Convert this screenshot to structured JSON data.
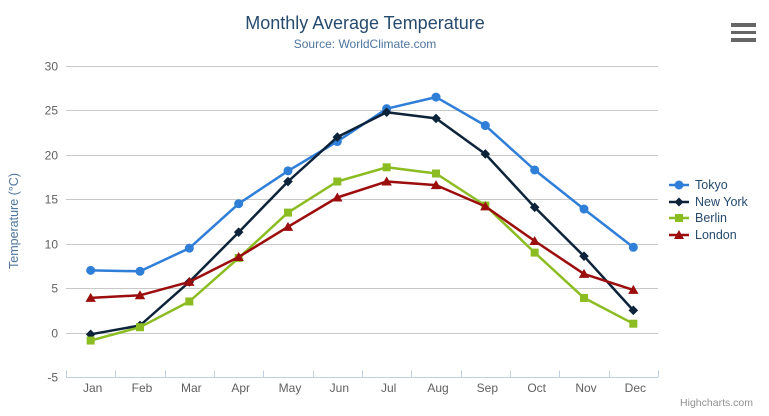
{
  "chart": {
    "credit_label": "Highcharts.com",
    "colors": {
      "title": "#274b6d",
      "subtitle": "#4d759e",
      "axis_title": "#4d759e",
      "axis_labels": "#606060",
      "grid_line": "#c8c8c8",
      "axis_line": "#c0d0e0",
      "legend_text": "#274b6d",
      "credit": "#909090",
      "menu_icon": "#666666"
    }
  },
  "chart_data": {
    "type": "line",
    "title": "Monthly Average Temperature",
    "subtitle": "Source: WorldClimate.com",
    "categories": [
      "Jan",
      "Feb",
      "Mar",
      "Apr",
      "May",
      "Jun",
      "Jul",
      "Aug",
      "Sep",
      "Oct",
      "Nov",
      "Dec"
    ],
    "xlabel": "",
    "ylabel": "Temperature (°C)",
    "ylim": [
      -5,
      30
    ],
    "yticks": [
      -5,
      0,
      5,
      10,
      15,
      20,
      25,
      30
    ],
    "grid": true,
    "legend_position": "right",
    "series": [
      {
        "name": "Tokyo",
        "color": "#2f7ed8",
        "marker": "circle",
        "values": [
          7.0,
          6.9,
          9.5,
          14.5,
          18.2,
          21.5,
          25.2,
          26.5,
          23.3,
          18.3,
          13.9,
          9.6
        ]
      },
      {
        "name": "New York",
        "color": "#0d233a",
        "marker": "diamond",
        "values": [
          -0.2,
          0.8,
          5.7,
          11.3,
          17.0,
          22.0,
          24.8,
          24.1,
          20.1,
          14.1,
          8.6,
          2.5
        ]
      },
      {
        "name": "Berlin",
        "color": "#8bbc21",
        "marker": "square",
        "values": [
          -0.9,
          0.6,
          3.5,
          8.4,
          13.5,
          17.0,
          18.6,
          17.9,
          14.3,
          9.0,
          3.9,
          1.0
        ]
      },
      {
        "name": "London",
        "color": "#9c0d0d",
        "marker": "triangle",
        "values": [
          3.9,
          4.2,
          5.7,
          8.5,
          11.9,
          15.2,
          17.0,
          16.6,
          14.2,
          10.3,
          6.6,
          4.8
        ]
      }
    ]
  }
}
